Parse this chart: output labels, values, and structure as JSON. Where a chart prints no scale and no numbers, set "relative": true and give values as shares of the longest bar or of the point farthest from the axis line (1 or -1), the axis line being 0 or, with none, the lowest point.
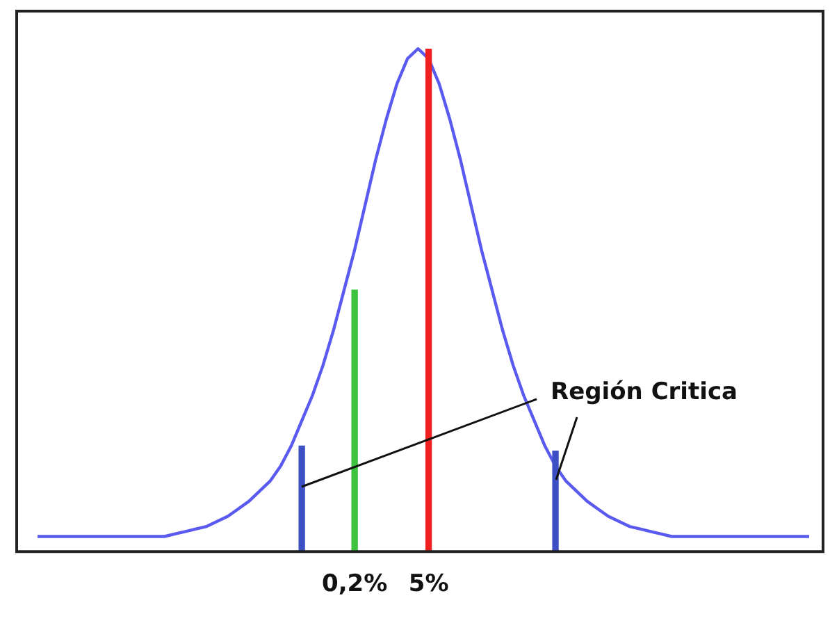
{
  "chart_data": {
    "type": "line",
    "relative": true,
    "marker": "none",
    "line_style": "solid",
    "grid": false,
    "legend": false,
    "tick_labels": "x",
    "categories": [
      null,
      null,
      null,
      null,
      null,
      null,
      null,
      null,
      null,
      null,
      null,
      null,
      null,
      null,
      null,
      null,
      null,
      null,
      null,
      null,
      null,
      null,
      null,
      null,
      null,
      null,
      null,
      null,
      null,
      null,
      "0,2%",
      null,
      null,
      null,
      null,
      null,
      null,
      "5%",
      null,
      null,
      null,
      null,
      null,
      null,
      null,
      null,
      null,
      null,
      null,
      null,
      null,
      null,
      null,
      null,
      null,
      null,
      null,
      null,
      null,
      null,
      null,
      null,
      null,
      null,
      null,
      null,
      null,
      null,
      null,
      null,
      null,
      null,
      null,
      null
    ],
    "annotations": [
      "Región Critica"
    ],
    "series": [
      {
        "color": "#5a5af0",
        "values": [
          0.03,
          0.03,
          0.03,
          0.03,
          0.03,
          0.03,
          0.03,
          0.03,
          0.03,
          0.03,
          0.03,
          0.03,
          0.03,
          0.035,
          0.04,
          0.045,
          0.05,
          0.06,
          0.07,
          0.085,
          0.1,
          0.12,
          0.14,
          0.17,
          0.21,
          0.26,
          0.31,
          0.37,
          0.44,
          0.52,
          0.6,
          0.69,
          0.78,
          0.86,
          0.93,
          0.98,
          1.0,
          0.98,
          0.93,
          0.86,
          0.78,
          0.69,
          0.6,
          0.52,
          0.44,
          0.37,
          0.31,
          0.26,
          0.21,
          0.17,
          0.14,
          0.12,
          0.1,
          0.085,
          0.07,
          0.06,
          0.05,
          0.045,
          0.04,
          0.035,
          0.03,
          0.03,
          0.03,
          0.03,
          0.03,
          0.03,
          0.03,
          0.03,
          0.03,
          0.03,
          0.03,
          0.03,
          0.03,
          0.03
        ]
      },
      {
        "type": "bar",
        "colors": [
          null,
          null,
          null,
          null,
          null,
          null,
          null,
          null,
          null,
          null,
          null,
          null,
          null,
          null,
          null,
          null,
          null,
          null,
          null,
          null,
          null,
          null,
          null,
          null,
          null,
          "#3d4fc4",
          null,
          null,
          null,
          null,
          "#3cc23c",
          null,
          null,
          null,
          null,
          null,
          null,
          "#f02020",
          null,
          null,
          null,
          null,
          null,
          null,
          null,
          null,
          null,
          null,
          null,
          "#3d4fc4",
          null,
          null,
          null,
          null,
          null,
          null,
          null,
          null,
          null,
          null,
          null,
          null,
          null,
          null,
          null,
          null,
          null,
          null,
          null,
          null,
          null,
          null,
          null,
          null
        ],
        "values": [
          null,
          null,
          null,
          null,
          null,
          null,
          null,
          null,
          null,
          null,
          null,
          null,
          null,
          null,
          null,
          null,
          null,
          null,
          null,
          null,
          null,
          null,
          null,
          null,
          null,
          0.21,
          null,
          null,
          null,
          null,
          0.52,
          null,
          null,
          null,
          null,
          null,
          null,
          1.0,
          null,
          null,
          null,
          null,
          null,
          null,
          null,
          null,
          null,
          null,
          null,
          0.2,
          null,
          null,
          null,
          null,
          null,
          null,
          null,
          null,
          null,
          null,
          null,
          null,
          null,
          null,
          null,
          null,
          null,
          null,
          null,
          null,
          null,
          null,
          null,
          null
        ]
      }
    ]
  }
}
